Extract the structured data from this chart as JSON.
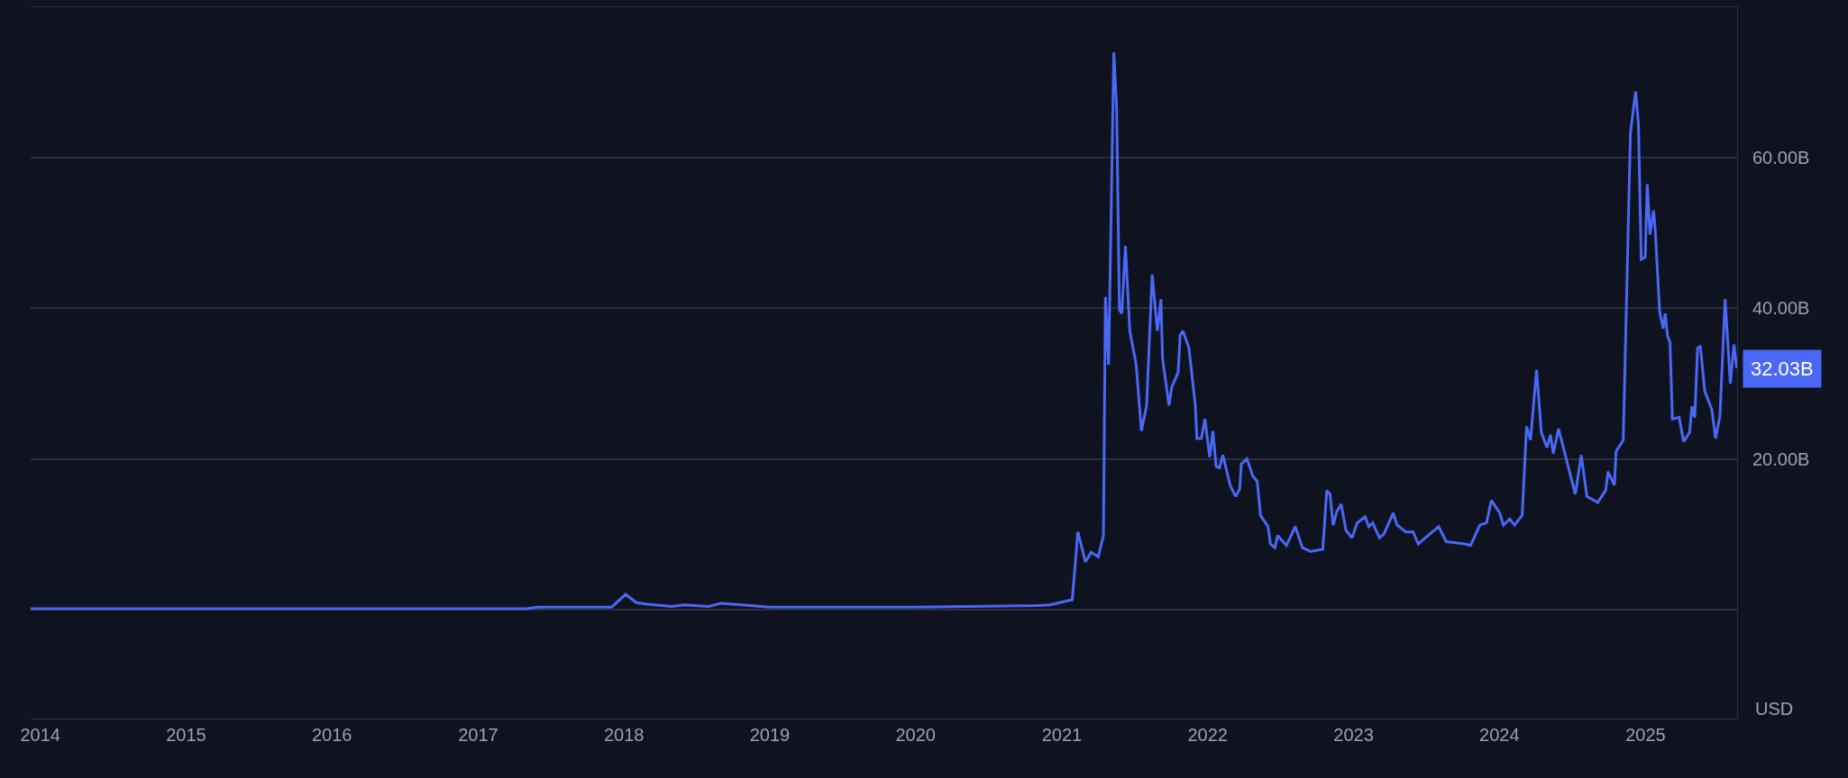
{
  "chart_data": {
    "type": "line",
    "x": [
      "2013-12-08",
      "2017-05-01",
      "2017-06-01",
      "2017-12-01",
      "2018-01-05",
      "2018-02-01",
      "2018-03-01",
      "2018-05-01",
      "2018-06-01",
      "2018-08-01",
      "2018-09-01",
      "2018-10-01",
      "2019-01-01",
      "2020-01-01",
      "2020-11-01",
      "2020-12-02",
      "2021-01-27",
      "2021-02-10",
      "2021-03-01",
      "2021-03-15",
      "2021-04-02",
      "2021-04-15",
      "2021-04-20",
      "2021-04-28",
      "2021-05-11",
      "2021-05-18",
      "2021-05-25",
      "2021-05-31",
      "2021-06-09",
      "2021-06-20",
      "2021-07-06",
      "2021-07-19",
      "2021-08-01",
      "2021-08-15",
      "2021-08-28",
      "2021-09-06",
      "2021-09-10",
      "2021-09-26",
      "2021-10-03",
      "2021-10-19",
      "2021-10-24",
      "2021-10-31",
      "2021-11-15",
      "2021-12-01",
      "2021-12-05",
      "2021-12-16",
      "2021-12-25",
      "2022-01-06",
      "2022-01-14",
      "2022-01-22",
      "2022-01-30",
      "2022-02-08",
      "2022-02-26",
      "2022-03-12",
      "2022-03-22",
      "2022-03-26",
      "2022-04-09",
      "2022-04-24",
      "2022-05-05",
      "2022-05-13",
      "2022-06-01",
      "2022-06-07",
      "2022-06-18",
      "2022-06-25",
      "2022-07-17",
      "2022-08-08",
      "2022-08-26",
      "2022-09-15",
      "2022-10-16",
      "2022-10-26",
      "2022-11-03",
      "2022-11-11",
      "2022-11-20",
      "2022-12-01",
      "2022-12-13",
      "2022-12-28",
      "2023-01-10",
      "2023-01-30",
      "2023-02-08",
      "2023-02-18",
      "2023-03-07",
      "2023-03-18",
      "2023-04-10",
      "2023-04-20",
      "2023-05-12",
      "2023-05-30",
      "2023-06-12",
      "2023-07-06",
      "2023-08-02",
      "2023-08-21",
      "2023-10-06",
      "2023-10-21",
      "2023-11-13",
      "2023-11-30",
      "2023-12-12",
      "2024-01-02",
      "2024-01-11",
      "2024-01-27",
      "2024-02-08",
      "2024-02-27",
      "2024-03-09",
      "2024-03-19",
      "2024-04-03",
      "2024-04-15",
      "2024-04-29",
      "2024-05-08",
      "2024-05-15",
      "2024-05-28",
      "2024-06-26",
      "2024-07-09",
      "2024-07-24",
      "2024-08-07",
      "2024-09-03",
      "2024-09-23",
      "2024-09-29",
      "2024-10-15",
      "2024-10-19",
      "2024-11-06",
      "2024-11-24",
      "2024-12-07",
      "2024-12-14",
      "2024-12-21",
      "2024-12-31",
      "2025-01-05",
      "2025-01-12",
      "2025-01-21",
      "2025-01-25",
      "2025-02-05",
      "2025-02-14",
      "2025-02-19",
      "2025-02-25",
      "2025-03-03",
      "2025-03-09",
      "2025-03-26",
      "2025-04-06",
      "2025-04-21",
      "2025-04-27",
      "2025-05-04",
      "2025-05-11",
      "2025-05-18",
      "2025-05-29",
      "2025-06-16",
      "2025-06-25",
      "2025-07-06",
      "2025-07-19",
      "2025-08-01",
      "2025-08-10",
      "2025-08-17"
    ],
    "series": [
      {
        "color": "#4a68f5",
        "values": [
          0.1,
          0.1,
          0.3,
          0.3,
          2.0,
          0.9,
          0.7,
          0.4,
          0.6,
          0.4,
          0.8,
          0.7,
          0.3,
          0.3,
          0.5,
          0.6,
          1.3,
          10.3,
          6.3,
          7.6,
          7.0,
          9.8,
          41.5,
          32.5,
          74.0,
          66.6,
          39.8,
          39.3,
          48.3,
          37.0,
          32.5,
          23.7,
          27.1,
          44.5,
          37.0,
          41.2,
          33.3,
          27.1,
          29.5,
          31.5,
          36.4,
          37.0,
          34.7,
          27.1,
          22.7,
          22.7,
          25.3,
          20.2,
          23.7,
          19.0,
          18.8,
          20.5,
          16.5,
          15.0,
          16.0,
          19.3,
          20.0,
          17.7,
          17.0,
          12.5,
          11.0,
          8.7,
          8.2,
          9.8,
          8.5,
          11.0,
          8.2,
          7.7,
          8.0,
          15.8,
          15.3,
          11.2,
          13.0,
          14.0,
          10.5,
          9.5,
          11.5,
          12.3,
          11.0,
          11.5,
          9.5,
          10.0,
          12.8,
          11.2,
          10.3,
          10.3,
          8.7,
          9.8,
          11.0,
          9.0,
          8.7,
          8.5,
          11.2,
          11.5,
          14.5,
          12.8,
          11.2,
          12.0,
          11.2,
          12.5,
          24.3,
          22.5,
          31.8,
          23.5,
          21.5,
          23.2,
          20.7,
          24.0,
          18.0,
          15.3,
          20.5,
          15.0,
          14.2,
          15.8,
          18.3,
          16.5,
          21.0,
          22.5,
          63.3,
          68.8,
          64.5,
          46.5,
          46.8,
          56.5,
          49.8,
          53.0,
          50.5,
          39.6,
          37.3,
          39.3,
          36.3,
          35.5,
          25.3,
          25.5,
          22.3,
          23.5,
          27.0,
          25.5,
          34.7,
          35.0,
          29.0,
          26.5,
          22.7,
          25.7,
          41.2,
          30.0,
          35.2,
          32.03
        ]
      }
    ],
    "xlim": [
      "2013-12-08",
      "2025-08-18"
    ],
    "xticks": [
      {
        "value": "2014-01-01",
        "label": "2014"
      },
      {
        "value": "2015-01-01",
        "label": "2015"
      },
      {
        "value": "2016-01-01",
        "label": "2016"
      },
      {
        "value": "2017-01-01",
        "label": "2017"
      },
      {
        "value": "2018-01-01",
        "label": "2018"
      },
      {
        "value": "2019-01-01",
        "label": "2019"
      },
      {
        "value": "2020-01-01",
        "label": "2020"
      },
      {
        "value": "2021-01-01",
        "label": "2021"
      },
      {
        "value": "2022-01-01",
        "label": "2022"
      },
      {
        "value": "2023-01-01",
        "label": "2023"
      },
      {
        "value": "2024-01-01",
        "label": "2024"
      },
      {
        "value": "2025-01-01",
        "label": "2025"
      }
    ],
    "ylim": [
      -14.5,
      80
    ],
    "yticks": [
      {
        "value": 0,
        "label": null
      },
      {
        "value": 20,
        "label": "20.00B"
      },
      {
        "value": 40,
        "label": "40.00B"
      },
      {
        "value": 60,
        "label": "60.00B"
      }
    ],
    "grid": "y",
    "marker": "none",
    "line_style": "solid",
    "annotations": [
      {
        "text": "32.03B",
        "x": "2025-08-17",
        "y": 32.03
      },
      "USD"
    ]
  }
}
